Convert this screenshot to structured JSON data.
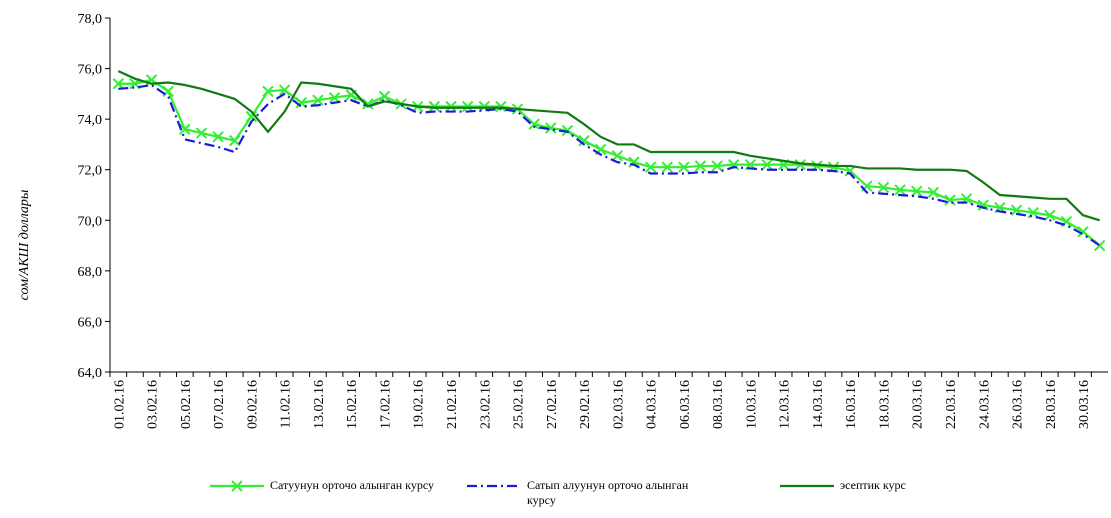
{
  "chart_data": {
    "type": "line",
    "ylabel": "сом/АКШ доллары",
    "categories": [
      "01.02.16",
      null,
      "03.02.16",
      null,
      "05.02.16",
      null,
      "07.02.16",
      null,
      "09.02.16",
      null,
      "11.02.16",
      null,
      "13.02.16",
      null,
      "15.02.16",
      null,
      "17.02.16",
      null,
      "19.02.16",
      null,
      "21.02.16",
      null,
      "23.02.16",
      null,
      "25.02.16",
      null,
      "27.02.16",
      null,
      "29.02.16",
      null,
      "02.03.16",
      null,
      "04.03.16",
      null,
      "06.03.16",
      null,
      "08.03.16",
      null,
      "10.03.16",
      null,
      "12.03.16",
      null,
      "14.03.16",
      null,
      "16.03.16",
      null,
      "18.03.16",
      null,
      "20.03.16",
      null,
      "22.03.16",
      null,
      "24.03.16",
      null,
      "26.03.16",
      null,
      "28.03.16",
      null,
      "30.03.16",
      null
    ],
    "series": [
      {
        "name": "Сатуунун  орточо алынган курсу",
        "color": "#33ee33",
        "marker": "x",
        "values": [
          75.4,
          75.4,
          75.55,
          75.1,
          73.6,
          73.45,
          73.3,
          73.15,
          74.1,
          75.1,
          75.15,
          74.65,
          74.75,
          74.85,
          74.95,
          74.6,
          74.9,
          74.6,
          74.5,
          74.5,
          74.5,
          74.5,
          74.5,
          74.5,
          74.4,
          73.8,
          73.65,
          73.55,
          73.15,
          72.8,
          72.55,
          72.3,
          72.1,
          72.1,
          72.1,
          72.15,
          72.15,
          72.2,
          72.2,
          72.2,
          72.2,
          72.2,
          72.15,
          72.1,
          71.95,
          71.35,
          71.3,
          71.2,
          71.15,
          71.1,
          70.8,
          70.85,
          70.6,
          70.5,
          70.4,
          70.3,
          70.2,
          69.95,
          69.55,
          69.0
        ]
      },
      {
        "name": "Сатып алуунун  орточо алынган курсу",
        "color": "#1a1adb",
        "dash": "dashdot",
        "values": [
          75.2,
          75.25,
          75.35,
          74.9,
          73.2,
          73.05,
          72.9,
          72.7,
          73.9,
          74.6,
          75.0,
          74.5,
          74.55,
          74.65,
          74.75,
          74.5,
          74.75,
          74.55,
          74.25,
          74.3,
          74.3,
          74.3,
          74.35,
          74.4,
          74.3,
          73.7,
          73.6,
          73.5,
          73.0,
          72.6,
          72.3,
          72.2,
          71.85,
          71.85,
          71.85,
          71.9,
          71.9,
          72.1,
          72.05,
          72.0,
          72.0,
          72.0,
          72.0,
          71.95,
          71.85,
          71.1,
          71.05,
          71.0,
          70.95,
          70.85,
          70.7,
          70.7,
          70.5,
          70.35,
          70.25,
          70.15,
          70.0,
          69.8,
          69.45,
          69.0
        ]
      },
      {
        "name": "эсептик курс",
        "color": "#127a12",
        "values": [
          75.9,
          75.6,
          75.4,
          75.45,
          75.35,
          75.2,
          75.0,
          74.8,
          74.3,
          73.5,
          74.3,
          75.45,
          75.4,
          75.3,
          75.2,
          74.5,
          74.7,
          74.6,
          74.5,
          74.45,
          74.45,
          74.45,
          74.45,
          74.45,
          74.4,
          74.35,
          74.3,
          74.25,
          73.8,
          73.3,
          73.0,
          73.0,
          72.7,
          72.7,
          72.7,
          72.7,
          72.7,
          72.7,
          72.55,
          72.45,
          72.35,
          72.25,
          72.2,
          72.15,
          72.15,
          72.05,
          72.05,
          72.05,
          72.0,
          72.0,
          72.0,
          71.95,
          71.5,
          71.0,
          70.95,
          70.9,
          70.85,
          70.85,
          70.2,
          70.0
        ]
      }
    ],
    "ylim": [
      64,
      78
    ],
    "yticks": [
      {
        "value": 64,
        "label": "64,0"
      },
      {
        "value": 66,
        "label": "66,0"
      },
      {
        "value": 68,
        "label": "68,0"
      },
      {
        "value": 70,
        "label": "70,0"
      },
      {
        "value": 72,
        "label": "72,0"
      },
      {
        "value": 74,
        "label": "74,0"
      },
      {
        "value": 76,
        "label": "76,0"
      },
      {
        "value": 78,
        "label": "78,0"
      }
    ],
    "grid": false,
    "legend": "bottom"
  }
}
